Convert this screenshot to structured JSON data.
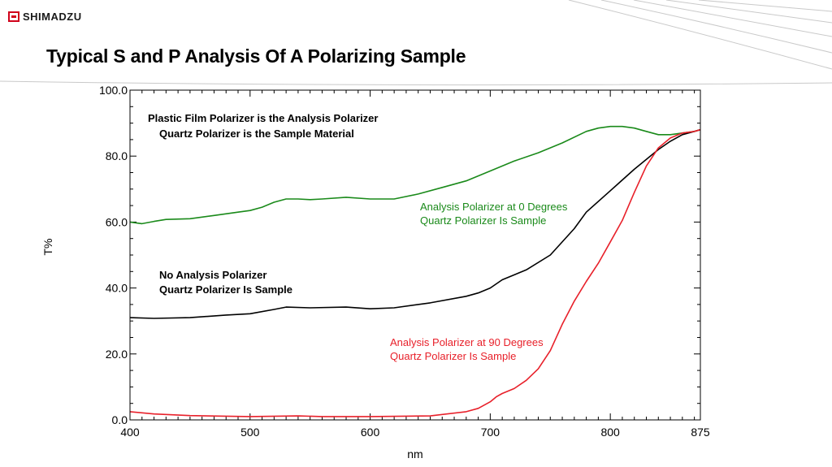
{
  "header": {
    "brand": "SHIMADZU",
    "title": "Typical S and P Analysis Of A Polarizing Sample"
  },
  "chart_data": {
    "type": "line",
    "xlabel": "nm",
    "ylabel": "T%",
    "xlim": [
      400,
      875
    ],
    "ylim": [
      0,
      100
    ],
    "x_ticks": [
      "400",
      "500",
      "600",
      "700",
      "800",
      "875"
    ],
    "y_ticks": [
      "0.0",
      "20.0",
      "40.0",
      "60.0",
      "80.0",
      "100.0"
    ],
    "annotations": [
      {
        "text": "Plastic Film Polarizer is the Analysis Polarizer",
        "color": "#000000"
      },
      {
        "text": "Quartz Polarizer is the Sample Material",
        "color": "#000000"
      },
      {
        "text": "Analysis Polarizer at 0 Degrees",
        "color": "#1a8a1a"
      },
      {
        "text": "Quartz Polarizer Is Sample",
        "color": "#1a8a1a"
      },
      {
        "text": "No Analysis Polarizer",
        "color": "#000000"
      },
      {
        "text": "Quartz Polarizer Is Sample",
        "color": "#000000"
      },
      {
        "text": "Analysis Polarizer at 90 Degrees",
        "color": "#e8202a"
      },
      {
        "text": "Quartz Polarizer Is Sample",
        "color": "#e8202a"
      }
    ],
    "series": [
      {
        "color": "#1a8a1a",
        "x": [
          400,
          410,
          420,
          430,
          450,
          470,
          490,
          500,
          510,
          520,
          530,
          540,
          550,
          560,
          580,
          600,
          620,
          640,
          660,
          680,
          700,
          720,
          740,
          760,
          780,
          790,
          800,
          810,
          820,
          830,
          840,
          850,
          860,
          870,
          875
        ],
        "y": [
          60.0,
          59.5,
          60.2,
          60.8,
          61.0,
          62.0,
          63.0,
          63.5,
          64.5,
          66.0,
          67.0,
          67.0,
          66.8,
          67.0,
          67.5,
          67.0,
          67.0,
          68.5,
          70.5,
          72.5,
          75.5,
          78.5,
          81.0,
          84.0,
          87.5,
          88.5,
          89.0,
          89.0,
          88.5,
          87.5,
          86.5,
          86.5,
          87.0,
          87.5,
          88.0
        ]
      },
      {
        "color": "#000000",
        "x": [
          400,
          420,
          450,
          480,
          500,
          520,
          530,
          550,
          580,
          600,
          620,
          650,
          680,
          690,
          700,
          710,
          730,
          750,
          770,
          780,
          800,
          820,
          840,
          850,
          860,
          870,
          875
        ],
        "y": [
          31.0,
          30.8,
          31.0,
          31.8,
          32.2,
          33.5,
          34.2,
          34.0,
          34.2,
          33.7,
          34.0,
          35.5,
          37.5,
          38.5,
          40.0,
          42.5,
          45.5,
          50.0,
          58.0,
          63.0,
          69.5,
          76.0,
          82.0,
          84.5,
          86.5,
          87.5,
          88.0
        ]
      },
      {
        "color": "#e8202a",
        "x": [
          400,
          420,
          450,
          500,
          540,
          560,
          600,
          650,
          680,
          690,
          700,
          705,
          710,
          720,
          730,
          740,
          750,
          760,
          770,
          780,
          790,
          800,
          810,
          820,
          830,
          840,
          850,
          860,
          870,
          875
        ],
        "y": [
          2.5,
          1.8,
          1.3,
          1.0,
          1.2,
          1.0,
          1.0,
          1.2,
          2.5,
          3.5,
          5.5,
          7.0,
          8.0,
          9.5,
          12.0,
          15.5,
          21.0,
          29.0,
          36.0,
          42.0,
          47.5,
          54.0,
          60.5,
          69.0,
          77.0,
          82.5,
          85.5,
          87.0,
          87.5,
          88.0
        ]
      }
    ]
  }
}
